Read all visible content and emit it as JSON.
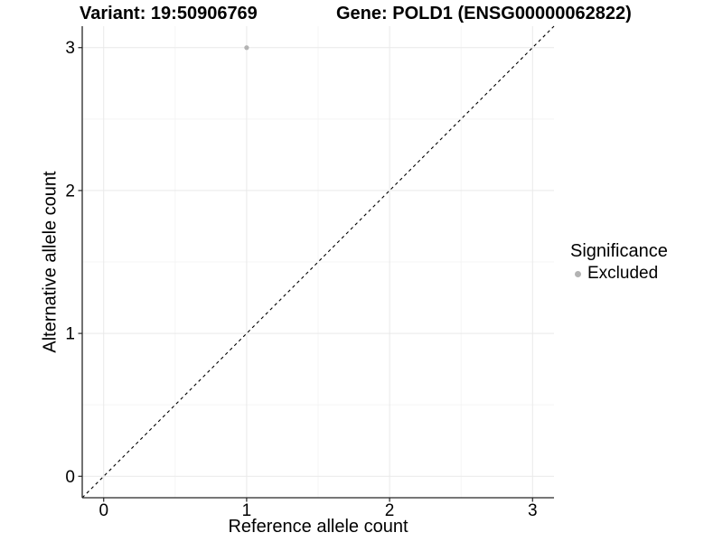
{
  "title": {
    "variant": "Variant: 19:50906769",
    "gene": "Gene: POLD1 (ENSG00000062822)"
  },
  "legend": {
    "title": "Significance",
    "items": [
      {
        "label": "Excluded",
        "color": "#b3b3b3",
        "marker": "circle-icon"
      }
    ]
  },
  "chart_data": {
    "type": "scatter",
    "title": "Variant: 19:50906769   Gene: POLD1 (ENSG00000062822)",
    "xlabel": "Reference allele count",
    "ylabel": "Alternative allele count",
    "xlim": [
      -0.15,
      3.15
    ],
    "ylim": [
      -0.15,
      3.15
    ],
    "x_ticks": [
      0,
      1,
      2,
      3
    ],
    "y_ticks": [
      0,
      1,
      2,
      3
    ],
    "x_minor_ticks": [
      0.5,
      1.5,
      2.5
    ],
    "y_minor_ticks": [
      0.5,
      1.5,
      2.5
    ],
    "grid": "major+minor",
    "legend_position": "right",
    "series": [
      {
        "name": "Excluded",
        "marker": "circle",
        "color": "#b3b3b3",
        "points": [
          {
            "x": 1,
            "y": 3
          }
        ]
      }
    ],
    "reference_line": {
      "kind": "identity",
      "slope": 1,
      "intercept": 0,
      "style": "dashed",
      "color": "#000000"
    }
  },
  "colors": {
    "background": "#ffffff",
    "axis_line": "#262626",
    "grid_major": "#e9e9e9",
    "grid_minor": "#f4f4f4",
    "tick_text": "#000000",
    "point": "#b3b3b3",
    "reference_line": "#000000"
  }
}
